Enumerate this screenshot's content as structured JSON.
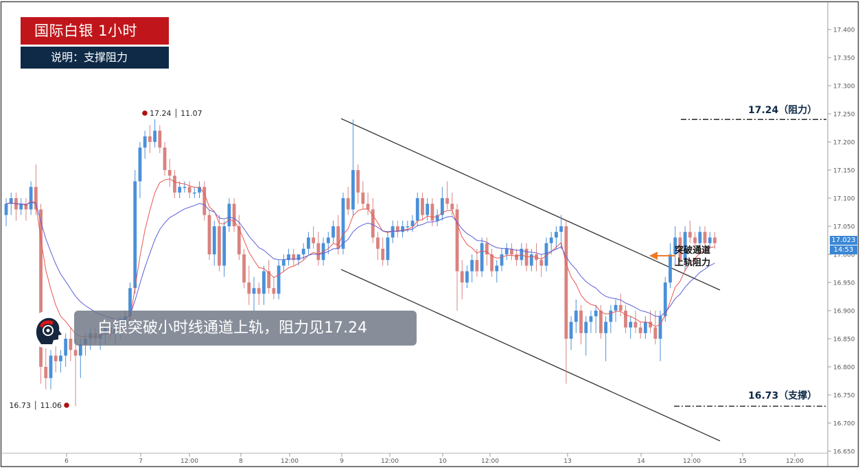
{
  "header": {
    "title": "国际白银  1小时",
    "subtitle": "说明：支撑阻力"
  },
  "banner": {
    "text": "白银突破小时线通道上轨，阻力见17.24"
  },
  "annotations": {
    "high_marker": "17.24 │ 11.07",
    "low_marker": "16.73 │ 11.06",
    "resistance_label": "17.24（阻力）",
    "support_label": "16.73（支撑）",
    "breakout_note_line1": "突破通道",
    "breakout_note_line2": "上轨阻力"
  },
  "price_tags": {
    "current": "17.023",
    "secondary": "14:53"
  },
  "colors": {
    "bull": "#4a90d9",
    "bear": "#d9837f",
    "title_bg": "#c0161b",
    "subtitle_bg": "#0e2a47",
    "fast_ma": "#e8554e",
    "slow_ma": "#5b5fd6",
    "channel": "#333333",
    "marker": "#b01010",
    "arrow": "#f07a28"
  },
  "chart_data": {
    "type": "candlestick",
    "instrument": "国际白银",
    "timeframe": "1小时",
    "ylim": [
      16.65,
      17.43
    ],
    "y_ticks": [
      "16.650",
      "16.700",
      "16.750",
      "16.800",
      "16.850",
      "16.900",
      "16.950",
      "17.000",
      "17.050",
      "17.100",
      "17.150",
      "17.200",
      "17.250",
      "17.300",
      "17.350",
      "17.400"
    ],
    "x_tick_labels": [
      "6",
      "7",
      "12:00",
      "8",
      "12:00",
      "9",
      "12:00",
      "10",
      "12:00",
      "13",
      "14",
      "12:00",
      "15",
      "12:00"
    ],
    "resistance": 17.24,
    "support": 16.73,
    "recent_high": {
      "price": 17.24,
      "date": "11.07"
    },
    "recent_low": {
      "price": 16.73,
      "date": "11.06"
    },
    "current_price": 17.023,
    "candles": [
      [
        17.07,
        17.1,
        17.05,
        17.09
      ],
      [
        17.09,
        17.11,
        17.07,
        17.1
      ],
      [
        17.1,
        17.11,
        17.06,
        17.08
      ],
      [
        17.08,
        17.1,
        17.07,
        17.09
      ],
      [
        17.09,
        17.1,
        17.06,
        17.08
      ],
      [
        17.08,
        17.13,
        17.07,
        17.12
      ],
      [
        17.12,
        17.16,
        17.07,
        17.08
      ],
      [
        17.08,
        17.09,
        16.77,
        16.8
      ],
      [
        16.8,
        16.84,
        16.76,
        16.78
      ],
      [
        16.78,
        16.83,
        16.76,
        16.82
      ],
      [
        16.82,
        16.85,
        16.79,
        16.81
      ],
      [
        16.81,
        16.83,
        16.79,
        16.82
      ],
      [
        16.82,
        16.86,
        16.8,
        16.85
      ],
      [
        16.85,
        16.87,
        16.81,
        16.83
      ],
      [
        16.83,
        16.85,
        16.73,
        16.82
      ],
      [
        16.82,
        16.85,
        16.78,
        16.84
      ],
      [
        16.84,
        16.86,
        16.82,
        16.85
      ],
      [
        16.85,
        16.87,
        16.83,
        16.86
      ],
      [
        16.86,
        16.87,
        16.84,
        16.85
      ],
      [
        16.85,
        16.86,
        16.83,
        16.86
      ],
      [
        16.86,
        16.88,
        16.84,
        16.87
      ],
      [
        16.87,
        16.88,
        16.85,
        16.86
      ],
      [
        16.86,
        16.88,
        16.84,
        16.87
      ],
      [
        16.87,
        16.89,
        16.85,
        16.88
      ],
      [
        16.88,
        16.9,
        16.86,
        16.89
      ],
      [
        16.89,
        16.95,
        16.88,
        16.94
      ],
      [
        16.94,
        17.15,
        16.93,
        17.13
      ],
      [
        17.13,
        17.2,
        17.1,
        17.19
      ],
      [
        17.19,
        17.22,
        17.17,
        17.21
      ],
      [
        17.21,
        17.23,
        17.18,
        17.2
      ],
      [
        17.2,
        17.24,
        17.19,
        17.22
      ],
      [
        17.22,
        17.23,
        17.18,
        17.19
      ],
      [
        17.19,
        17.2,
        17.14,
        17.15
      ],
      [
        17.15,
        17.17,
        17.12,
        17.14
      ],
      [
        17.14,
        17.15,
        17.1,
        17.11
      ],
      [
        17.11,
        17.13,
        17.1,
        17.12
      ],
      [
        17.12,
        17.13,
        17.11,
        17.12
      ],
      [
        17.12,
        17.13,
        17.1,
        17.11
      ],
      [
        17.11,
        17.12,
        17.1,
        17.11
      ],
      [
        17.11,
        17.13,
        17.1,
        17.12
      ],
      [
        17.12,
        17.13,
        17.06,
        17.07
      ],
      [
        17.07,
        17.08,
        16.99,
        17.0
      ],
      [
        17.0,
        17.06,
        16.98,
        17.05
      ],
      [
        17.05,
        17.07,
        16.97,
        16.98
      ],
      [
        16.98,
        17.06,
        16.96,
        17.05
      ],
      [
        17.05,
        17.1,
        17.04,
        17.09
      ],
      [
        17.09,
        17.1,
        17.04,
        17.05
      ],
      [
        17.05,
        17.07,
        16.99,
        17.0
      ],
      [
        17.0,
        17.01,
        16.94,
        16.95
      ],
      [
        16.95,
        16.98,
        16.91,
        16.93
      ],
      [
        16.93,
        16.96,
        16.9,
        16.94
      ],
      [
        16.94,
        16.95,
        16.91,
        16.93
      ],
      [
        16.93,
        16.98,
        16.91,
        16.97
      ],
      [
        16.97,
        16.99,
        16.93,
        16.94
      ],
      [
        16.94,
        16.96,
        16.92,
        16.93
      ],
      [
        16.93,
        16.99,
        16.92,
        16.98
      ],
      [
        16.98,
        17.0,
        16.97,
        16.99
      ],
      [
        16.99,
        17.01,
        16.98,
        17.0
      ],
      [
        17.0,
        17.01,
        16.98,
        16.99
      ],
      [
        16.99,
        17.0,
        16.98,
        17.0
      ],
      [
        17.0,
        17.02,
        16.99,
        17.01
      ],
      [
        17.01,
        17.04,
        17.0,
        17.03
      ],
      [
        17.03,
        17.05,
        17.01,
        17.02
      ],
      [
        17.02,
        17.04,
        16.98,
        16.99
      ],
      [
        16.99,
        17.03,
        16.98,
        17.02
      ],
      [
        17.02,
        17.04,
        17.0,
        17.03
      ],
      [
        17.03,
        17.06,
        17.02,
        17.05
      ],
      [
        17.05,
        17.07,
        17.0,
        17.01
      ],
      [
        17.01,
        17.11,
        17.0,
        17.1
      ],
      [
        17.1,
        17.12,
        17.07,
        17.08
      ],
      [
        17.08,
        17.24,
        17.07,
        17.15
      ],
      [
        17.15,
        17.16,
        17.09,
        17.11
      ],
      [
        17.11,
        17.13,
        17.08,
        17.09
      ],
      [
        17.09,
        17.11,
        17.07,
        17.08
      ],
      [
        17.08,
        17.1,
        17.02,
        17.03
      ],
      [
        17.03,
        17.04,
        16.99,
        17.01
      ],
      [
        17.01,
        17.03,
        16.98,
        16.99
      ],
      [
        16.99,
        17.04,
        16.98,
        17.03
      ],
      [
        17.03,
        17.06,
        17.02,
        17.05
      ],
      [
        17.05,
        17.06,
        17.03,
        17.04
      ],
      [
        17.04,
        17.06,
        17.03,
        17.05
      ],
      [
        17.05,
        17.06,
        17.04,
        17.05
      ],
      [
        17.05,
        17.07,
        17.04,
        17.06
      ],
      [
        17.06,
        17.11,
        17.05,
        17.1
      ],
      [
        17.1,
        17.11,
        17.06,
        17.07
      ],
      [
        17.07,
        17.1,
        17.06,
        17.09
      ],
      [
        17.09,
        17.1,
        17.05,
        17.06
      ],
      [
        17.06,
        17.08,
        17.05,
        17.07
      ],
      [
        17.07,
        17.12,
        17.06,
        17.1
      ],
      [
        17.1,
        17.13,
        17.08,
        17.09
      ],
      [
        17.09,
        17.11,
        17.07,
        17.08
      ],
      [
        17.08,
        17.09,
        16.9,
        16.97
      ],
      [
        16.97,
        16.99,
        16.92,
        16.95
      ],
      [
        16.95,
        16.98,
        16.94,
        16.97
      ],
      [
        16.97,
        17.0,
        16.95,
        16.99
      ],
      [
        16.99,
        17.01,
        16.96,
        16.97
      ],
      [
        16.97,
        17.03,
        16.96,
        17.02
      ],
      [
        17.02,
        17.03,
        16.98,
        17.0
      ],
      [
        17.0,
        17.01,
        16.96,
        16.97
      ],
      [
        16.97,
        16.99,
        16.95,
        16.98
      ],
      [
        16.98,
        17.01,
        16.97,
        17.0
      ],
      [
        17.0,
        17.02,
        16.99,
        17.01
      ],
      [
        17.01,
        17.02,
        16.99,
        17.0
      ],
      [
        17.0,
        17.01,
        16.98,
        16.99
      ],
      [
        16.99,
        17.02,
        16.98,
        17.01
      ],
      [
        17.01,
        17.02,
        16.97,
        16.98
      ],
      [
        16.98,
        17.01,
        16.97,
        17.0
      ],
      [
        17.0,
        17.02,
        16.97,
        16.99
      ],
      [
        16.99,
        17.0,
        16.96,
        16.98
      ],
      [
        16.98,
        17.03,
        16.97,
        17.02
      ],
      [
        17.02,
        17.04,
        17.0,
        17.03
      ],
      [
        17.03,
        17.05,
        17.01,
        17.04
      ],
      [
        17.04,
        17.07,
        17.01,
        17.05
      ],
      [
        17.05,
        17.06,
        16.77,
        16.85
      ],
      [
        16.85,
        16.89,
        16.83,
        16.88
      ],
      [
        16.88,
        16.92,
        16.86,
        16.9
      ],
      [
        16.9,
        16.91,
        16.84,
        16.86
      ],
      [
        16.86,
        16.89,
        16.82,
        16.88
      ],
      [
        16.88,
        16.9,
        16.86,
        16.89
      ],
      [
        16.89,
        16.91,
        16.86,
        16.9
      ],
      [
        16.9,
        16.91,
        16.85,
        16.86
      ],
      [
        16.86,
        16.89,
        16.81,
        16.88
      ],
      [
        16.88,
        16.91,
        16.86,
        16.9
      ],
      [
        16.9,
        16.92,
        16.88,
        16.91
      ],
      [
        16.91,
        16.93,
        16.89,
        16.9
      ],
      [
        16.9,
        16.91,
        16.86,
        16.87
      ],
      [
        16.87,
        16.89,
        16.85,
        16.88
      ],
      [
        16.88,
        16.9,
        16.86,
        16.87
      ],
      [
        16.87,
        16.88,
        16.85,
        16.86
      ],
      [
        16.86,
        16.89,
        16.85,
        16.88
      ],
      [
        16.88,
        16.9,
        16.86,
        16.87
      ],
      [
        16.87,
        16.9,
        16.84,
        16.85
      ],
      [
        16.85,
        16.9,
        16.81,
        16.89
      ],
      [
        16.89,
        16.96,
        16.88,
        16.95
      ],
      [
        16.95,
        17.02,
        16.94,
        17.0
      ],
      [
        17.0,
        17.05,
        16.98,
        17.03
      ],
      [
        17.03,
        17.04,
        16.98,
        16.99
      ],
      [
        16.99,
        17.05,
        16.97,
        17.04
      ],
      [
        17.04,
        17.06,
        17.02,
        17.03
      ],
      [
        17.03,
        17.04,
        17.01,
        17.02
      ],
      [
        17.02,
        17.05,
        17.0,
        17.04
      ],
      [
        17.04,
        17.05,
        17.01,
        17.02
      ],
      [
        17.02,
        17.04,
        17.01,
        17.03
      ],
      [
        17.03,
        17.04,
        17.01,
        17.02
      ]
    ]
  }
}
